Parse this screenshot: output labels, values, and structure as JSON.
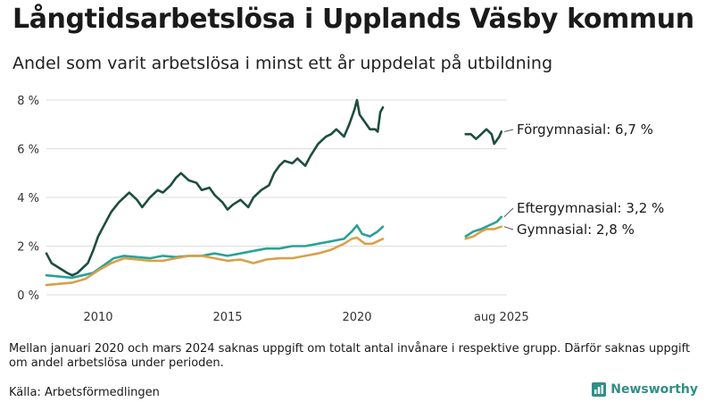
{
  "header": {
    "title": "Långtidsarbetslösa i Upplands Väsby kommun",
    "subtitle": "Andel som varit arbetslösa i minst ett år uppdelat på utbildning"
  },
  "footer": {
    "note": "Mellan januari 2020 och mars 2024 saknas uppgift om totalt antal invånare i respektive grupp. Därför saknas uppgift om andel arbetslösa under perioden.",
    "source": "Källa: Arbetsförmedlingen",
    "logo_text": "Newsworthy"
  },
  "colors": {
    "forgymnasial": "#1d4d40",
    "eftergymnasial": "#2aa198",
    "gymnasial": "#d9a04a",
    "grid": "#dcdcdc",
    "logo": "#2f8f86"
  },
  "chart_data": {
    "type": "line",
    "title": "Långtidsarbetslösa i Upplands Väsby kommun",
    "subtitle": "Andel som varit arbetslösa i minst ett år uppdelat på utbildning",
    "ylim": [
      0,
      8.5
    ],
    "yticks": [
      0,
      2,
      4,
      6,
      8
    ],
    "ytick_labels": [
      "0 %",
      "2 %",
      "4 %",
      "6 %",
      "8 %"
    ],
    "xticks": [
      {
        "x": 2010.0,
        "label": "2010"
      },
      {
        "x": 2015.0,
        "label": "2015"
      },
      {
        "x": 2020.0,
        "label": "2020"
      },
      {
        "x": 2025.58,
        "label": "aug 2025"
      }
    ],
    "gap": [
      "2020-12",
      "2024-03"
    ],
    "series": [
      {
        "name": "Förgymnasial",
        "end_label": "Förgymnasial: 6,7 %",
        "color_key": "forgymnasial",
        "segments": [
          [
            [
              2008.0,
              1.7
            ],
            [
              2008.2,
              1.3
            ],
            [
              2008.5,
              1.1
            ],
            [
              2008.8,
              0.9
            ],
            [
              2009.0,
              0.8
            ],
            [
              2009.2,
              0.9
            ],
            [
              2009.4,
              1.1
            ],
            [
              2009.6,
              1.3
            ],
            [
              2009.8,
              1.8
            ],
            [
              2010.0,
              2.4
            ],
            [
              2010.2,
              2.8
            ],
            [
              2010.5,
              3.4
            ],
            [
              2010.8,
              3.8
            ],
            [
              2011.0,
              4.0
            ],
            [
              2011.2,
              4.2
            ],
            [
              2011.5,
              3.9
            ],
            [
              2011.7,
              3.6
            ],
            [
              2012.0,
              4.0
            ],
            [
              2012.3,
              4.3
            ],
            [
              2012.5,
              4.2
            ],
            [
              2012.8,
              4.5
            ],
            [
              2013.0,
              4.8
            ],
            [
              2013.2,
              5.0
            ],
            [
              2013.5,
              4.7
            ],
            [
              2013.8,
              4.6
            ],
            [
              2014.0,
              4.3
            ],
            [
              2014.3,
              4.4
            ],
            [
              2014.5,
              4.1
            ],
            [
              2014.8,
              3.8
            ],
            [
              2015.0,
              3.5
            ],
            [
              2015.2,
              3.7
            ],
            [
              2015.5,
              3.9
            ],
            [
              2015.8,
              3.6
            ],
            [
              2016.0,
              4.0
            ],
            [
              2016.3,
              4.3
            ],
            [
              2016.6,
              4.5
            ],
            [
              2016.8,
              5.0
            ],
            [
              2017.0,
              5.3
            ],
            [
              2017.2,
              5.5
            ],
            [
              2017.5,
              5.4
            ],
            [
              2017.7,
              5.6
            ],
            [
              2018.0,
              5.3
            ],
            [
              2018.2,
              5.7
            ],
            [
              2018.5,
              6.2
            ],
            [
              2018.8,
              6.5
            ],
            [
              2019.0,
              6.6
            ],
            [
              2019.2,
              6.8
            ],
            [
              2019.5,
              6.5
            ],
            [
              2019.7,
              7.0
            ],
            [
              2019.9,
              7.6
            ],
            [
              2020.0,
              8.0
            ],
            [
              2020.1,
              7.4
            ],
            [
              2020.3,
              7.1
            ],
            [
              2020.5,
              6.8
            ],
            [
              2020.7,
              6.8
            ],
            [
              2020.8,
              6.7
            ],
            [
              2020.9,
              7.5
            ],
            [
              2021.0,
              7.7
            ]
          ],
          [
            [
              2024.2,
              6.6
            ],
            [
              2024.4,
              6.6
            ],
            [
              2024.6,
              6.4
            ],
            [
              2024.8,
              6.6
            ],
            [
              2025.0,
              6.8
            ],
            [
              2025.2,
              6.6
            ],
            [
              2025.3,
              6.2
            ],
            [
              2025.5,
              6.5
            ],
            [
              2025.58,
              6.7
            ]
          ]
        ]
      },
      {
        "name": "Eftergymnasial",
        "end_label": "Eftergymnasial: 3,2 %",
        "color_key": "eftergymnasial",
        "segments": [
          [
            [
              2008.0,
              0.8
            ],
            [
              2008.5,
              0.75
            ],
            [
              2009.0,
              0.7
            ],
            [
              2009.4,
              0.8
            ],
            [
              2009.8,
              0.9
            ],
            [
              2010.2,
              1.2
            ],
            [
              2010.6,
              1.5
            ],
            [
              2011.0,
              1.6
            ],
            [
              2011.5,
              1.55
            ],
            [
              2012.0,
              1.5
            ],
            [
              2012.5,
              1.6
            ],
            [
              2013.0,
              1.55
            ],
            [
              2013.5,
              1.6
            ],
            [
              2014.0,
              1.6
            ],
            [
              2014.5,
              1.7
            ],
            [
              2015.0,
              1.6
            ],
            [
              2015.5,
              1.7
            ],
            [
              2016.0,
              1.8
            ],
            [
              2016.5,
              1.9
            ],
            [
              2017.0,
              1.9
            ],
            [
              2017.5,
              2.0
            ],
            [
              2018.0,
              2.0
            ],
            [
              2018.5,
              2.1
            ],
            [
              2019.0,
              2.2
            ],
            [
              2019.5,
              2.3
            ],
            [
              2019.8,
              2.6
            ],
            [
              2020.0,
              2.85
            ],
            [
              2020.2,
              2.5
            ],
            [
              2020.5,
              2.4
            ],
            [
              2020.8,
              2.6
            ],
            [
              2021.0,
              2.8
            ]
          ],
          [
            [
              2024.2,
              2.4
            ],
            [
              2024.5,
              2.6
            ],
            [
              2024.8,
              2.7
            ],
            [
              2025.0,
              2.8
            ],
            [
              2025.2,
              2.9
            ],
            [
              2025.4,
              3.0
            ],
            [
              2025.58,
              3.2
            ]
          ]
        ]
      },
      {
        "name": "Gymnasial",
        "end_label": "Gymnasial: 2,8 %",
        "color_key": "gymnasial",
        "segments": [
          [
            [
              2008.0,
              0.4
            ],
            [
              2008.5,
              0.45
            ],
            [
              2009.0,
              0.5
            ],
            [
              2009.5,
              0.65
            ],
            [
              2010.0,
              1.0
            ],
            [
              2010.5,
              1.3
            ],
            [
              2011.0,
              1.5
            ],
            [
              2011.5,
              1.45
            ],
            [
              2012.0,
              1.4
            ],
            [
              2012.5,
              1.4
            ],
            [
              2013.0,
              1.5
            ],
            [
              2013.5,
              1.6
            ],
            [
              2014.0,
              1.6
            ],
            [
              2014.5,
              1.5
            ],
            [
              2015.0,
              1.4
            ],
            [
              2015.5,
              1.45
            ],
            [
              2016.0,
              1.3
            ],
            [
              2016.5,
              1.45
            ],
            [
              2017.0,
              1.5
            ],
            [
              2017.5,
              1.5
            ],
            [
              2018.0,
              1.6
            ],
            [
              2018.5,
              1.7
            ],
            [
              2019.0,
              1.85
            ],
            [
              2019.5,
              2.1
            ],
            [
              2019.8,
              2.3
            ],
            [
              2020.0,
              2.35
            ],
            [
              2020.3,
              2.1
            ],
            [
              2020.6,
              2.1
            ],
            [
              2020.8,
              2.2
            ],
            [
              2021.0,
              2.3
            ]
          ],
          [
            [
              2024.2,
              2.3
            ],
            [
              2024.5,
              2.4
            ],
            [
              2024.8,
              2.6
            ],
            [
              2025.0,
              2.7
            ],
            [
              2025.3,
              2.7
            ],
            [
              2025.58,
              2.8
            ]
          ]
        ]
      }
    ]
  }
}
